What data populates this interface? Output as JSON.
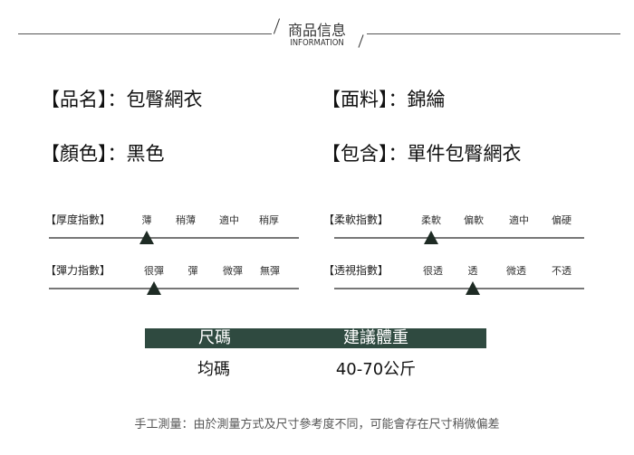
{
  "header": {
    "title": "商品信息",
    "subtitle": "INFORMATION"
  },
  "info": [
    {
      "label": "【品名】：",
      "value": "包臀網衣"
    },
    {
      "label": "【面料】：",
      "value": "錦綸"
    },
    {
      "label": "【顏色】：",
      "value": "黑色"
    },
    {
      "label": "【包含】：",
      "value": "單件包臀網衣"
    }
  ],
  "scales": [
    {
      "label": "【厚度指數】",
      "options": [
        "薄",
        "稍薄",
        "適中",
        "稍厚"
      ],
      "selected": "薄"
    },
    {
      "label": "【彈力指數】",
      "options": [
        "很彈",
        "彈",
        "微彈",
        "無彈"
      ],
      "selected": "很彈"
    },
    {
      "label": "【柔軟指數】",
      "options": [
        "柔軟",
        "偏軟",
        "適中",
        "偏硬"
      ],
      "selected": "柔軟"
    },
    {
      "label": "【透視指數】",
      "options": [
        "很透",
        "透",
        "微透",
        "不透"
      ],
      "selected": "透"
    }
  ],
  "size_table": {
    "headers": [
      "尺碼",
      "建議體重"
    ],
    "rows": [
      [
        "均碼",
        "40-70公斤"
      ]
    ],
    "header_color": "#2f4a40"
  },
  "footer": "手工測量：由於測量方式及尺寸參考度不同，可能會存在尺寸稍微偏差"
}
